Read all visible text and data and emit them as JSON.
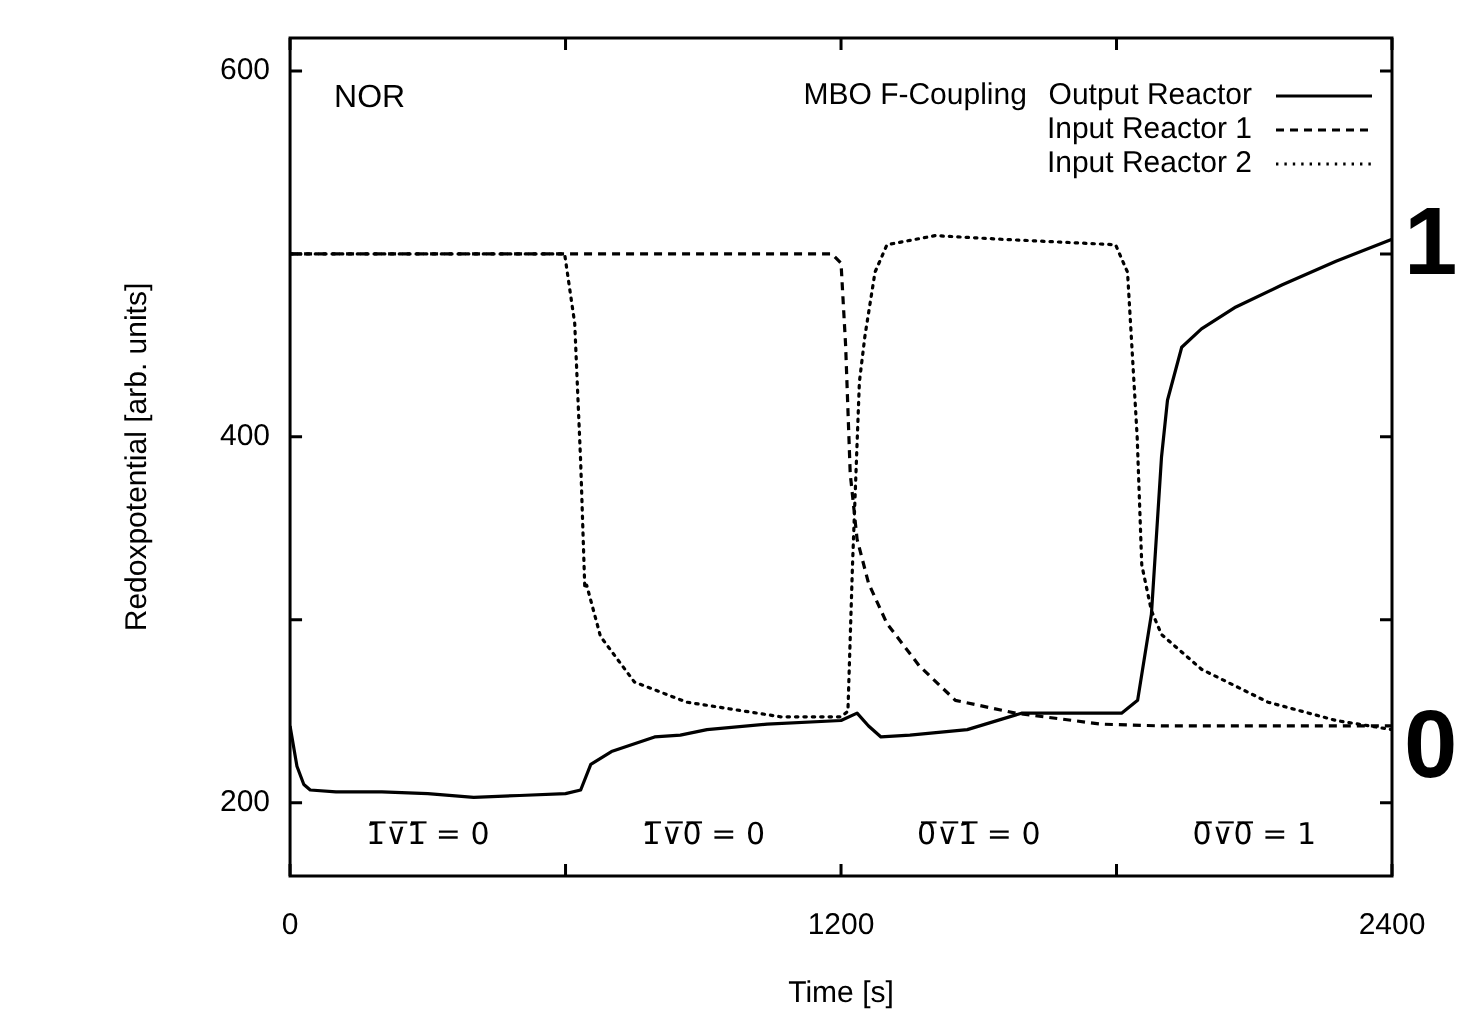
{
  "chart_data": {
    "type": "line",
    "xlabel": "Time [s]",
    "ylabel": "Redoxpotential [arb. units]",
    "legend_title": "MBO  F-Coupling",
    "legend": "top right",
    "grid": false,
    "marker": "none",
    "xlim": [
      0,
      2400
    ],
    "xticks": [
      0,
      {
        "value": 600,
        "label": null
      },
      1200,
      {
        "value": 1800,
        "label": null
      },
      2400
    ],
    "ylim": [
      160,
      618
    ],
    "yticks": [
      200,
      {
        "value": 300,
        "label": null
      },
      400,
      {
        "value": 500,
        "label": null
      },
      600
    ],
    "annotations": [
      "NOR",
      "1̅∨̅1̅ = 0",
      "1̅∨̅0̅ = 0",
      "0̅∨̅1̅ = 0",
      "0̅∨̅0̅ = 1",
      "1",
      "0"
    ],
    "series": [
      {
        "name": "Output Reactor",
        "color": "#000000",
        "line_style": "solid",
        "x": [
          0,
          15,
          30,
          44,
          100,
          200,
          300,
          400,
          500,
          600,
          633,
          655,
          700,
          794,
          850,
          908,
          1039,
          1200,
          1235,
          1260,
          1287,
          1350,
          1475,
          1593,
          1700,
          1811,
          1846,
          1876,
          1898,
          1911,
          1942,
          1985,
          2060,
          2160,
          2278,
          2400
        ],
        "values": [
          242,
          220,
          210,
          207,
          206,
          206,
          205,
          203,
          204,
          205,
          207,
          221,
          228,
          236,
          237,
          240,
          243,
          245,
          249,
          242,
          236,
          237,
          240,
          249,
          249,
          249,
          256,
          303,
          389,
          420,
          449,
          459,
          471,
          483,
          496,
          508
        ]
      },
      {
        "name": "Input Reactor 1",
        "color": "#000000",
        "line_style": "dashed",
        "x": [
          0,
          300,
          600,
          900,
          1180,
          1200,
          1210,
          1220,
          1235,
          1260,
          1300,
          1370,
          1449,
          1580,
          1767,
          1900,
          2100,
          2300,
          2400
        ],
        "values": [
          500,
          500,
          500,
          500,
          500,
          495,
          450,
          380,
          344,
          320,
          298,
          275,
          256,
          249,
          243,
          242,
          242,
          242,
          242
        ]
      },
      {
        "name": "Input Reactor 2",
        "color": "#000000",
        "line_style": "dotted",
        "x": [
          0,
          300,
          590,
          598,
          620,
          633,
          642,
          646,
          676,
          750,
          864,
          1069,
          1200,
          1215,
          1225,
          1240,
          1252,
          1274,
          1300,
          1405,
          1549,
          1798,
          1824,
          1845,
          1855,
          1876,
          1898,
          1985,
          2130,
          2278,
          2400
        ],
        "values": [
          500,
          500,
          500,
          500,
          462,
          386,
          317,
          319,
          291,
          266,
          255,
          247,
          247,
          250,
          330,
          430,
          455,
          490,
          505,
          510,
          508,
          505,
          490,
          400,
          330,
          305,
          292,
          273,
          255,
          245,
          240
        ]
      }
    ]
  }
}
